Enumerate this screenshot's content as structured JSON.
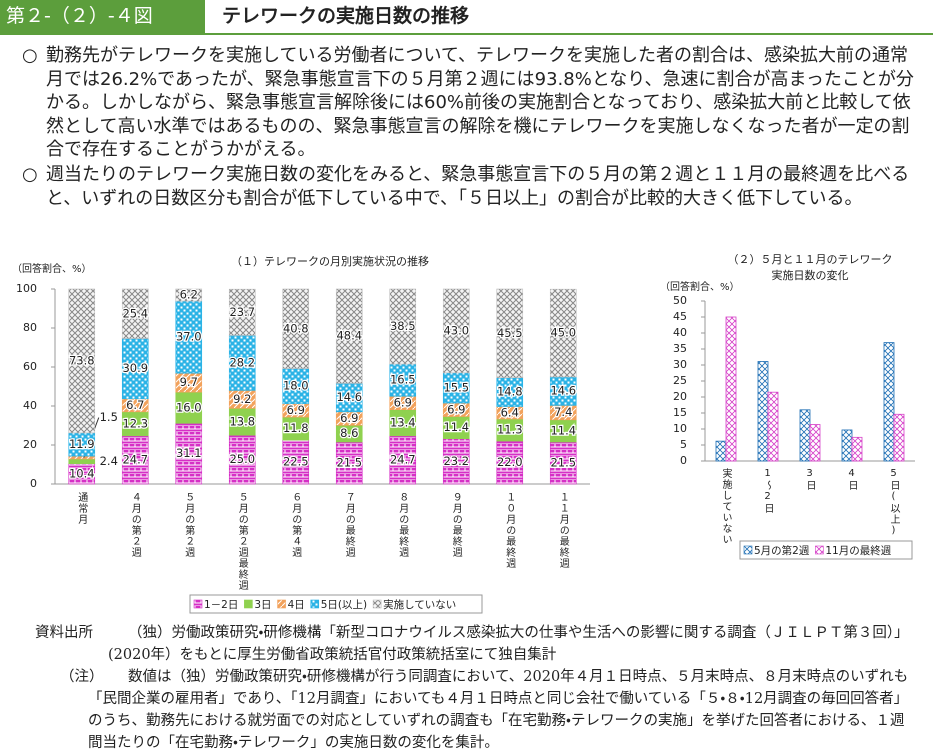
{
  "header": {
    "figure": "第２-（２）-４図",
    "title": "テレワークの実施日数の推移"
  },
  "paragraphs": [
    {
      "marker": "○",
      "text": "勤務先がテレワークを実施している労働者について、テレワークを実施した者の割合は、感染拡大前の通常月では26.2%であったが、緊急事態宣言下の５月第２週には93.8%となり、急速に割合が高まったことが分かる。しかしながら、緊急事態宣言解除後には60%前後の実施割合となっており、感染拡大前と比較して依然として高い水準ではあるものの、緊急事態宣言の解除を機にテレワークを実施しなくなった者が一定の割合で存在することがうかがえる。"
    },
    {
      "marker": "○",
      "text": "週当たりのテレワーク実施日数の変化をみると、緊急事態宣言下の５月の第２週と１１月の最終週を比べると、いずれの日数区分も割合が低下している中で、「５日以上」の割合が比較的大きく低下している。"
    }
  ],
  "chart_data": [
    {
      "type": "bar",
      "stacked": true,
      "title": "（１）テレワークの月別実施状況の推移",
      "y_label": "（回答割合、%）",
      "categories": [
        "通常月",
        "４月の第２週",
        "５月の第２週",
        "５月の第２週最終週",
        "６月の第４週",
        "７月の最終週",
        "８月の最終週",
        "９月の最終週",
        "１０月の最終週",
        "１１月の最終週"
      ],
      "series": [
        {
          "name": "1－2日",
          "color": "#d62fc6",
          "values": [
            10.4,
            24.7,
            31.1,
            25.0,
            22.5,
            21.5,
            24.7,
            23.2,
            22.0,
            21.5
          ],
          "value_labels": [
            "10.4",
            "24.7",
            "31.1",
            "25.0",
            "22.5",
            "21.5",
            "24.7",
            "23.2",
            "22.0",
            "21.5"
          ]
        },
        {
          "name": "3日",
          "color": "#8fd14f",
          "values": [
            2.4,
            12.3,
            16.0,
            13.8,
            11.8,
            8.6,
            13.4,
            11.4,
            11.3,
            11.4
          ],
          "value_labels": [
            "2.4",
            "12.3",
            "16.0",
            "13.8",
            "11.8",
            "8.6",
            "13.4",
            "11.4",
            "11.3",
            "11.4"
          ]
        },
        {
          "name": "4日",
          "color": "#f2a25c",
          "values": [
            1.5,
            6.7,
            9.7,
            9.2,
            6.9,
            6.9,
            6.9,
            6.9,
            6.4,
            7.4
          ],
          "value_labels": [
            "1.5",
            "6.7",
            "9.7",
            "9.2",
            "6.9",
            "6.9",
            "6.9",
            "6.9",
            "6.4",
            "7.4"
          ]
        },
        {
          "name": "5日(以上)",
          "color": "#2bb3e6",
          "values": [
            11.9,
            30.9,
            37.0,
            28.2,
            18.0,
            14.6,
            16.5,
            15.5,
            14.8,
            14.6
          ],
          "value_labels": [
            "11.9",
            "30.9",
            "37.0",
            "28.2",
            "18.0",
            "14.6",
            "16.5",
            "15.5",
            "14.8",
            "14.6"
          ]
        },
        {
          "name": "実施していない",
          "color": "#bdbdbd",
          "values": [
            73.8,
            25.4,
            6.2,
            23.7,
            40.8,
            48.4,
            38.5,
            43.0,
            45.5,
            45.0
          ],
          "value_labels": [
            "73.8",
            "25.4",
            "6.2",
            "23.7",
            "40.8",
            "48.4",
            "38.5",
            "43.0",
            "45.5",
            "45.0"
          ]
        }
      ],
      "ylim": [
        0,
        100
      ],
      "yticks": [
        0,
        20,
        40,
        60,
        80,
        100
      ]
    },
    {
      "type": "bar",
      "stacked": false,
      "title": [
        "（２）５月と１１月のテレワーク",
        "実施日数の変化"
      ],
      "y_label": "（回答割合、%）",
      "categories": [
        "実施していない",
        "1～2日",
        "3日",
        "4日",
        "5日(以上)"
      ],
      "series": [
        {
          "name": "5月の第2週",
          "color": "#1f6fb5",
          "values": [
            6.2,
            31.1,
            16.0,
            9.7,
            37.0
          ]
        },
        {
          "name": "11月の最終週",
          "color": "#d63fc8",
          "values": [
            45.0,
            21.5,
            11.4,
            7.4,
            14.6
          ]
        }
      ],
      "ylim": [
        0,
        50
      ],
      "yticks": [
        0,
        5,
        10,
        15,
        20,
        25,
        30,
        35,
        40,
        45,
        50
      ]
    }
  ],
  "source": {
    "label": "資料出所",
    "text": "（独）労働政策研究・研修機構「新型コロナウイルス感染拡大の仕事や生活への影響に関する調査（ＪＩＬＰＴ第３回）」(2020年）をもとに厚生労働省政策統括官付政策統括室にて独自集計"
  },
  "note": {
    "label": "（注）",
    "text": "数値は（独）労働政策研究・研修機構が行う同調査において、2020年４月１日時点、５月末時点、８月末時点のいずれも「民間企業の雇用者」であり、「12月調査」においても４月１日時点と同じ会社で働いている「５・８・12月調査の毎回回答者」のうち、勤務先における就労面での対応としていずれの調査も「在宅勤務・テレワークの実施」を挙げた回答者における、１週間当たりの「在宅勤務・テレワーク」の実施日数の変化を集計。"
  }
}
